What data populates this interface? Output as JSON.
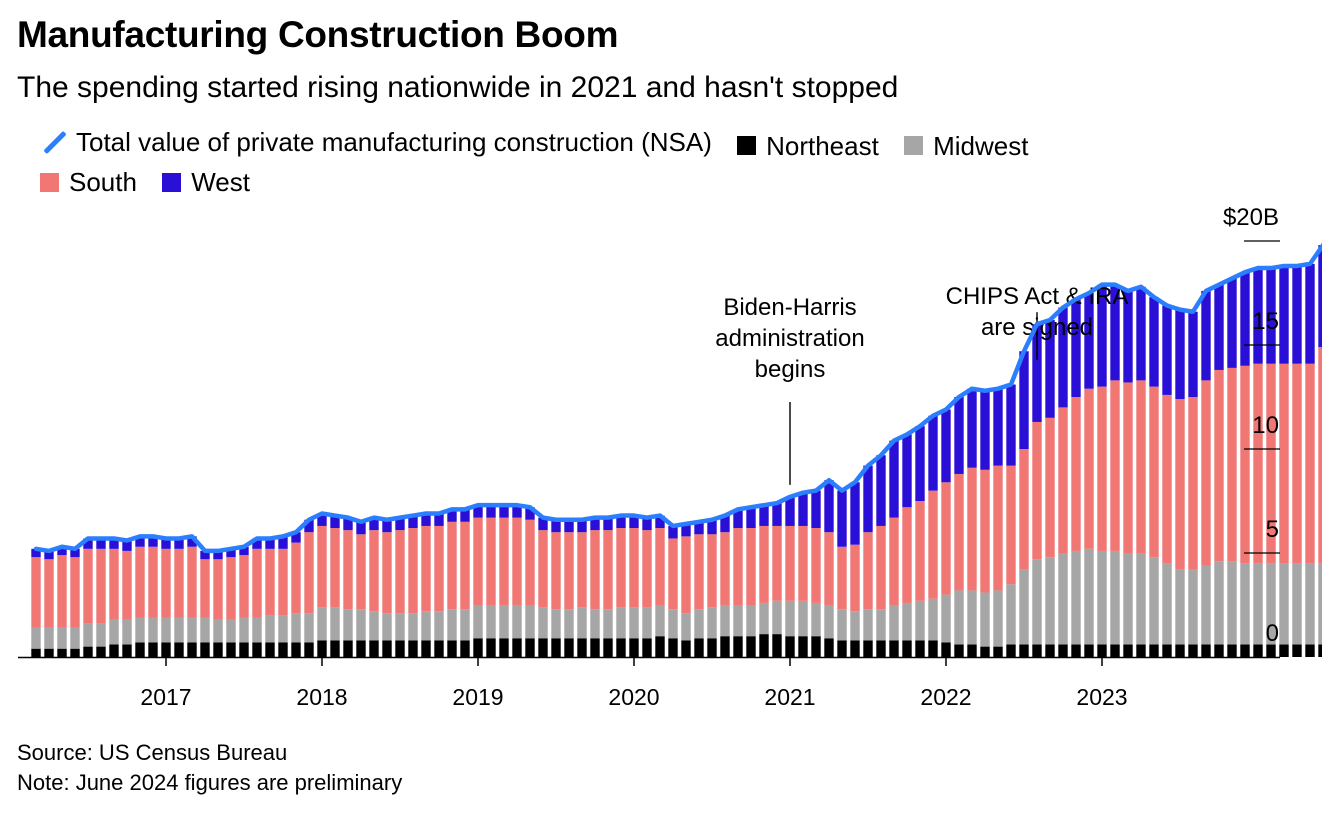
{
  "header": {
    "title": "Manufacturing Construction Boom",
    "subtitle": "The spending started rising nationwide in 2021 and hasn't stopped"
  },
  "legend": {
    "total_label": "Total value of private manufacturing construction (NSA)",
    "northeast_label": "Northeast",
    "midwest_label": "Midwest",
    "south_label": "South",
    "west_label": "West"
  },
  "colors": {
    "total": "#2b7fff",
    "northeast": "#000000",
    "midwest": "#a6a6a6",
    "south": "#f07774",
    "west": "#2a0fd6"
  },
  "chart_data": {
    "type": "bar",
    "stacked": true,
    "x_start": "2016-03",
    "x_end": "2024-06",
    "x_ticks": [
      "2017",
      "2018",
      "2019",
      "2020",
      "2021",
      "2022",
      "2023"
    ],
    "y_ticks": [
      "0",
      "5",
      "10",
      "15",
      "$20B"
    ],
    "ylim": [
      0,
      20
    ],
    "annotations": [
      {
        "text": [
          "Biden-Harris",
          "administration",
          "begins"
        ],
        "date": "2021-01"
      },
      {
        "text": [
          "CHIPS Act & IRA",
          "are signed"
        ],
        "date": "2022-08"
      }
    ],
    "series": [
      {
        "name": "Northeast",
        "values": [
          0.4,
          0.4,
          0.4,
          0.4,
          0.5,
          0.5,
          0.6,
          0.6,
          0.7,
          0.7,
          0.7,
          0.7,
          0.7,
          0.7,
          0.7,
          0.7,
          0.7,
          0.7,
          0.7,
          0.7,
          0.7,
          0.7,
          0.8,
          0.8,
          0.8,
          0.8,
          0.8,
          0.8,
          0.8,
          0.8,
          0.8,
          0.8,
          0.8,
          0.8,
          0.9,
          0.9,
          0.9,
          0.9,
          0.9,
          0.9,
          0.9,
          0.9,
          0.9,
          0.9,
          0.9,
          0.9,
          0.9,
          0.9,
          1.0,
          0.9,
          0.8,
          0.9,
          0.9,
          1.0,
          1.0,
          1.0,
          1.1,
          1.1,
          1.0,
          1.0,
          1.0,
          0.9,
          0.8,
          0.8,
          0.8,
          0.8,
          0.8,
          0.8,
          0.8,
          0.8,
          0.7,
          0.6,
          0.6,
          0.5,
          0.5,
          0.6,
          0.6,
          0.6,
          0.6,
          0.6,
          0.6,
          0.6,
          0.6,
          0.6,
          0.6,
          0.6,
          0.6,
          0.6,
          0.6,
          0.6,
          0.6,
          0.6,
          0.6,
          0.6,
          0.6,
          0.6,
          0.6,
          0.6,
          0.6,
          0.6
        ]
      },
      {
        "name": "Midwest",
        "values": [
          1.0,
          1.0,
          1.0,
          1.0,
          1.1,
          1.1,
          1.2,
          1.2,
          1.2,
          1.2,
          1.2,
          1.2,
          1.2,
          1.2,
          1.1,
          1.1,
          1.2,
          1.2,
          1.3,
          1.3,
          1.4,
          1.4,
          1.6,
          1.6,
          1.5,
          1.5,
          1.4,
          1.3,
          1.3,
          1.3,
          1.4,
          1.4,
          1.5,
          1.5,
          1.6,
          1.6,
          1.6,
          1.6,
          1.6,
          1.5,
          1.4,
          1.4,
          1.5,
          1.4,
          1.4,
          1.5,
          1.5,
          1.5,
          1.5,
          1.4,
          1.3,
          1.4,
          1.5,
          1.5,
          1.5,
          1.5,
          1.5,
          1.6,
          1.7,
          1.7,
          1.6,
          1.6,
          1.5,
          1.4,
          1.5,
          1.5,
          1.7,
          1.8,
          1.9,
          2.0,
          2.3,
          2.6,
          2.6,
          2.6,
          2.7,
          2.9,
          3.6,
          4.1,
          4.2,
          4.4,
          4.5,
          4.6,
          4.5,
          4.5,
          4.4,
          4.4,
          4.2,
          3.9,
          3.6,
          3.6,
          3.8,
          4.0,
          4.0,
          3.9,
          3.9,
          3.9,
          3.9,
          3.9,
          3.9,
          3.9
        ]
      },
      {
        "name": "South",
        "values": [
          3.4,
          3.3,
          3.5,
          3.4,
          3.6,
          3.6,
          3.4,
          3.3,
          3.4,
          3.4,
          3.3,
          3.3,
          3.4,
          2.8,
          2.9,
          3.0,
          3.0,
          3.3,
          3.2,
          3.2,
          3.4,
          3.9,
          3.9,
          3.8,
          3.8,
          3.6,
          3.9,
          3.9,
          4.0,
          4.1,
          4.1,
          4.1,
          4.2,
          4.2,
          4.2,
          4.2,
          4.2,
          4.2,
          4.1,
          3.7,
          3.7,
          3.7,
          3.6,
          3.8,
          3.8,
          3.8,
          3.8,
          3.7,
          3.7,
          3.4,
          3.7,
          3.6,
          3.5,
          3.5,
          3.7,
          3.7,
          3.7,
          3.6,
          3.6,
          3.6,
          3.6,
          3.5,
          3.0,
          3.2,
          3.7,
          4.0,
          4.2,
          4.6,
          4.8,
          5.2,
          5.4,
          5.6,
          5.9,
          5.9,
          6.0,
          5.7,
          5.8,
          6.6,
          6.7,
          7.0,
          7.4,
          7.7,
          7.9,
          8.2,
          8.2,
          8.3,
          8.2,
          8.1,
          8.2,
          8.3,
          8.9,
          9.2,
          9.3,
          9.5,
          9.6,
          9.6,
          9.6,
          9.6,
          9.6,
          10.4
        ]
      },
      {
        "name": "West",
        "values": [
          0.4,
          0.4,
          0.4,
          0.4,
          0.5,
          0.5,
          0.5,
          0.5,
          0.5,
          0.5,
          0.5,
          0.5,
          0.5,
          0.4,
          0.4,
          0.4,
          0.4,
          0.5,
          0.5,
          0.6,
          0.5,
          0.6,
          0.6,
          0.6,
          0.6,
          0.6,
          0.6,
          0.6,
          0.6,
          0.6,
          0.6,
          0.6,
          0.6,
          0.6,
          0.6,
          0.6,
          0.6,
          0.6,
          0.6,
          0.6,
          0.6,
          0.6,
          0.6,
          0.6,
          0.6,
          0.6,
          0.6,
          0.6,
          0.6,
          0.6,
          0.6,
          0.6,
          0.7,
          0.8,
          0.9,
          1.0,
          1.0,
          1.1,
          1.4,
          1.6,
          1.8,
          2.5,
          2.7,
          3.0,
          3.2,
          3.4,
          3.7,
          3.5,
          3.6,
          3.6,
          3.5,
          3.7,
          3.8,
          3.8,
          3.7,
          3.9,
          4.7,
          4.7,
          4.7,
          4.8,
          4.7,
          4.6,
          4.9,
          4.6,
          4.4,
          4.5,
          4.3,
          4.3,
          4.3,
          4.1,
          4.3,
          4.1,
          4.3,
          4.5,
          4.6,
          4.6,
          4.7,
          4.7,
          4.8,
          4.9
        ]
      }
    ]
  },
  "footer": {
    "source": "Source: US Census Bureau",
    "note": "Note: June 2024 figures are preliminary"
  }
}
